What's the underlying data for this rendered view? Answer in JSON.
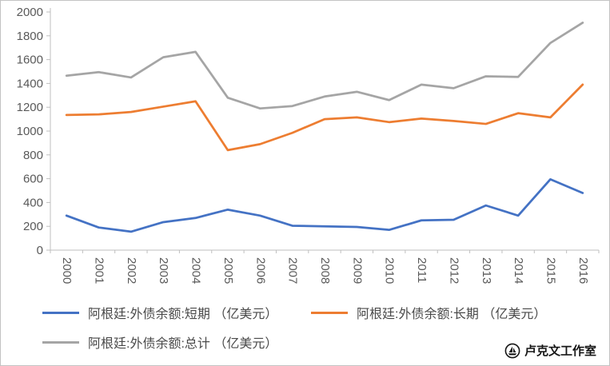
{
  "chart_data": {
    "type": "line",
    "title": "",
    "xlabel": "",
    "ylabel": "",
    "categories": [
      "2000",
      "2001",
      "2002",
      "2003",
      "2004",
      "2005",
      "2006",
      "2007",
      "2008",
      "2009",
      "2010",
      "2011",
      "2012",
      "2013",
      "2014",
      "2015",
      "2016"
    ],
    "series": [
      {
        "name": "阿根廷:外债余额:短期 （亿美元）",
        "color": "#4472C4",
        "values": [
          290,
          190,
          155,
          235,
          270,
          340,
          290,
          205,
          200,
          195,
          170,
          250,
          255,
          375,
          290,
          595,
          480
        ]
      },
      {
        "name": "阿根廷:外债余额:长期 （亿美元）",
        "color": "#ED7D31",
        "values": [
          1135,
          1140,
          1160,
          1205,
          1250,
          840,
          890,
          985,
          1100,
          1115,
          1075,
          1105,
          1085,
          1060,
          1150,
          1115,
          1390
        ]
      },
      {
        "name": "阿根廷:外债余额:总计 （亿美元）",
        "color": "#A5A5A5",
        "values": [
          1465,
          1495,
          1450,
          1620,
          1665,
          1280,
          1190,
          1210,
          1290,
          1330,
          1260,
          1390,
          1360,
          1460,
          1455,
          1740,
          1910
        ]
      }
    ],
    "ylim": [
      0,
      2000
    ],
    "ytick_step": 200,
    "grid": false,
    "legend_position": "bottom",
    "axis_color": "#BFBFBF",
    "tick_label_color": "#595959",
    "line_width": 2.75
  },
  "watermark": {
    "text": "卢克文工作室",
    "icon": "studio-logo-icon"
  }
}
